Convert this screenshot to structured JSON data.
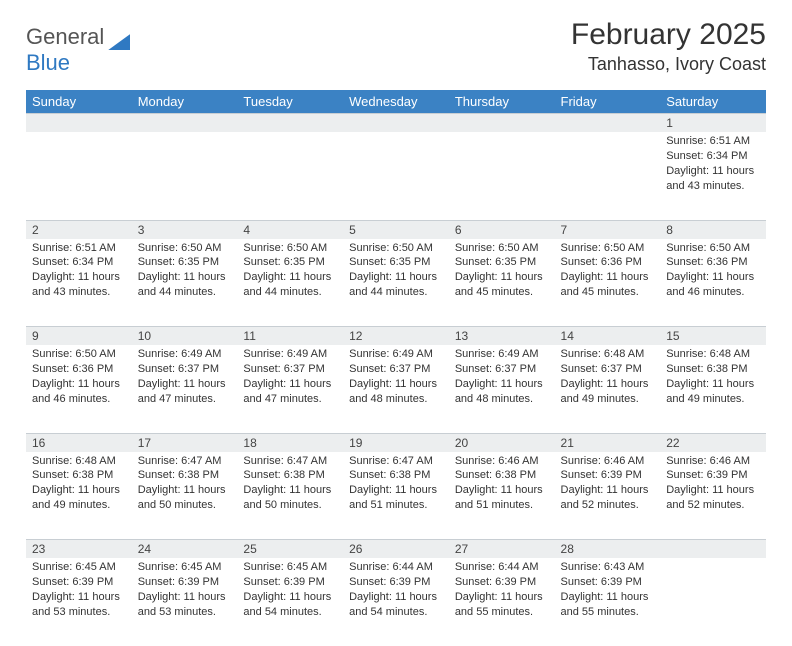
{
  "brand": {
    "word1": "General",
    "word2": "Blue"
  },
  "title": "February 2025",
  "location": "Tanhasso, Ivory Coast",
  "colors": {
    "header_bg": "#3b82c4",
    "header_text": "#ffffff",
    "daynum_bg": "#eceeef",
    "border": "#c8ced3",
    "text": "#333333",
    "brand_blue": "#2f79c2",
    "brand_gray": "#555555"
  },
  "weekdays": [
    "Sunday",
    "Monday",
    "Tuesday",
    "Wednesday",
    "Thursday",
    "Friday",
    "Saturday"
  ],
  "weeks": [
    [
      null,
      null,
      null,
      null,
      null,
      null,
      {
        "n": "1",
        "sr": "Sunrise: 6:51 AM",
        "ss": "Sunset: 6:34 PM",
        "dl": "Daylight: 11 hours and 43 minutes."
      }
    ],
    [
      {
        "n": "2",
        "sr": "Sunrise: 6:51 AM",
        "ss": "Sunset: 6:34 PM",
        "dl": "Daylight: 11 hours and 43 minutes."
      },
      {
        "n": "3",
        "sr": "Sunrise: 6:50 AM",
        "ss": "Sunset: 6:35 PM",
        "dl": "Daylight: 11 hours and 44 minutes."
      },
      {
        "n": "4",
        "sr": "Sunrise: 6:50 AM",
        "ss": "Sunset: 6:35 PM",
        "dl": "Daylight: 11 hours and 44 minutes."
      },
      {
        "n": "5",
        "sr": "Sunrise: 6:50 AM",
        "ss": "Sunset: 6:35 PM",
        "dl": "Daylight: 11 hours and 44 minutes."
      },
      {
        "n": "6",
        "sr": "Sunrise: 6:50 AM",
        "ss": "Sunset: 6:35 PM",
        "dl": "Daylight: 11 hours and 45 minutes."
      },
      {
        "n": "7",
        "sr": "Sunrise: 6:50 AM",
        "ss": "Sunset: 6:36 PM",
        "dl": "Daylight: 11 hours and 45 minutes."
      },
      {
        "n": "8",
        "sr": "Sunrise: 6:50 AM",
        "ss": "Sunset: 6:36 PM",
        "dl": "Daylight: 11 hours and 46 minutes."
      }
    ],
    [
      {
        "n": "9",
        "sr": "Sunrise: 6:50 AM",
        "ss": "Sunset: 6:36 PM",
        "dl": "Daylight: 11 hours and 46 minutes."
      },
      {
        "n": "10",
        "sr": "Sunrise: 6:49 AM",
        "ss": "Sunset: 6:37 PM",
        "dl": "Daylight: 11 hours and 47 minutes."
      },
      {
        "n": "11",
        "sr": "Sunrise: 6:49 AM",
        "ss": "Sunset: 6:37 PM",
        "dl": "Daylight: 11 hours and 47 minutes."
      },
      {
        "n": "12",
        "sr": "Sunrise: 6:49 AM",
        "ss": "Sunset: 6:37 PM",
        "dl": "Daylight: 11 hours and 48 minutes."
      },
      {
        "n": "13",
        "sr": "Sunrise: 6:49 AM",
        "ss": "Sunset: 6:37 PM",
        "dl": "Daylight: 11 hours and 48 minutes."
      },
      {
        "n": "14",
        "sr": "Sunrise: 6:48 AM",
        "ss": "Sunset: 6:37 PM",
        "dl": "Daylight: 11 hours and 49 minutes."
      },
      {
        "n": "15",
        "sr": "Sunrise: 6:48 AM",
        "ss": "Sunset: 6:38 PM",
        "dl": "Daylight: 11 hours and 49 minutes."
      }
    ],
    [
      {
        "n": "16",
        "sr": "Sunrise: 6:48 AM",
        "ss": "Sunset: 6:38 PM",
        "dl": "Daylight: 11 hours and 49 minutes."
      },
      {
        "n": "17",
        "sr": "Sunrise: 6:47 AM",
        "ss": "Sunset: 6:38 PM",
        "dl": "Daylight: 11 hours and 50 minutes."
      },
      {
        "n": "18",
        "sr": "Sunrise: 6:47 AM",
        "ss": "Sunset: 6:38 PM",
        "dl": "Daylight: 11 hours and 50 minutes."
      },
      {
        "n": "19",
        "sr": "Sunrise: 6:47 AM",
        "ss": "Sunset: 6:38 PM",
        "dl": "Daylight: 11 hours and 51 minutes."
      },
      {
        "n": "20",
        "sr": "Sunrise: 6:46 AM",
        "ss": "Sunset: 6:38 PM",
        "dl": "Daylight: 11 hours and 51 minutes."
      },
      {
        "n": "21",
        "sr": "Sunrise: 6:46 AM",
        "ss": "Sunset: 6:39 PM",
        "dl": "Daylight: 11 hours and 52 minutes."
      },
      {
        "n": "22",
        "sr": "Sunrise: 6:46 AM",
        "ss": "Sunset: 6:39 PM",
        "dl": "Daylight: 11 hours and 52 minutes."
      }
    ],
    [
      {
        "n": "23",
        "sr": "Sunrise: 6:45 AM",
        "ss": "Sunset: 6:39 PM",
        "dl": "Daylight: 11 hours and 53 minutes."
      },
      {
        "n": "24",
        "sr": "Sunrise: 6:45 AM",
        "ss": "Sunset: 6:39 PM",
        "dl": "Daylight: 11 hours and 53 minutes."
      },
      {
        "n": "25",
        "sr": "Sunrise: 6:45 AM",
        "ss": "Sunset: 6:39 PM",
        "dl": "Daylight: 11 hours and 54 minutes."
      },
      {
        "n": "26",
        "sr": "Sunrise: 6:44 AM",
        "ss": "Sunset: 6:39 PM",
        "dl": "Daylight: 11 hours and 54 minutes."
      },
      {
        "n": "27",
        "sr": "Sunrise: 6:44 AM",
        "ss": "Sunset: 6:39 PM",
        "dl": "Daylight: 11 hours and 55 minutes."
      },
      {
        "n": "28",
        "sr": "Sunrise: 6:43 AM",
        "ss": "Sunset: 6:39 PM",
        "dl": "Daylight: 11 hours and 55 minutes."
      },
      null
    ]
  ]
}
